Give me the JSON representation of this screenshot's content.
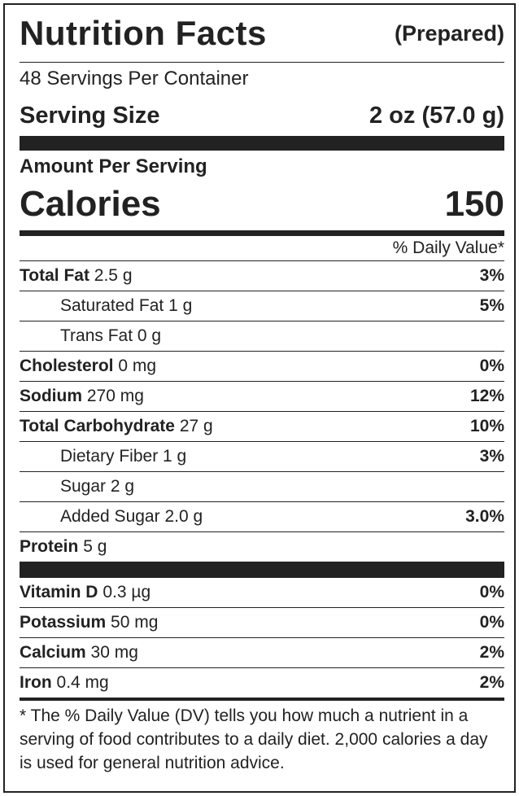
{
  "header": {
    "title": "Nutrition Facts",
    "qualifier": "(Prepared)"
  },
  "servings_per_container": "48 Servings Per Container",
  "serving_size": {
    "label": "Serving Size",
    "value": "2 oz (57.0 g)"
  },
  "amount_per_serving": "Amount Per Serving",
  "calories": {
    "label": "Calories",
    "value": "150"
  },
  "daily_value_header": "% Daily Value*",
  "nutrients": [
    {
      "name": "Total Fat",
      "amount": "2.5 g",
      "dv": "3%",
      "sub": false
    },
    {
      "name": "Saturated Fat",
      "amount": "1 g",
      "dv": "5%",
      "sub": true
    },
    {
      "name": "Trans Fat",
      "amount": "0 g",
      "sub": true
    },
    {
      "name": "Cholesterol",
      "amount": "0 mg",
      "dv": "0%",
      "sub": false
    },
    {
      "name": "Sodium",
      "amount": "270 mg",
      "dv": "12%",
      "sub": false
    },
    {
      "name": "Total Carbohydrate",
      "amount": "27 g",
      "dv": "10%",
      "sub": false
    },
    {
      "name": "Dietary Fiber",
      "amount": "1 g",
      "dv": "3%",
      "sub": true
    },
    {
      "name": "Sugar",
      "amount": "2 g",
      "sub": true
    },
    {
      "name": "Added Sugar",
      "amount": "2.0 g",
      "dv": "3.0%",
      "sub": true
    },
    {
      "name": "Protein",
      "amount": "5 g",
      "sub": false
    }
  ],
  "vitamins": [
    {
      "name": "Vitamin D",
      "amount": "0.3 µg",
      "dv": "0%"
    },
    {
      "name": "Potassium",
      "amount": "50 mg",
      "dv": "0%"
    },
    {
      "name": "Calcium",
      "amount": "30 mg",
      "dv": "2%"
    },
    {
      "name": "Iron",
      "amount": "0.4 mg",
      "dv": "2%"
    }
  ],
  "footnote": "* The % Daily Value (DV) tells you how much a nutrient in a serving of food contributes to a daily diet. 2,000 calories a day is used for general nutrition advice."
}
